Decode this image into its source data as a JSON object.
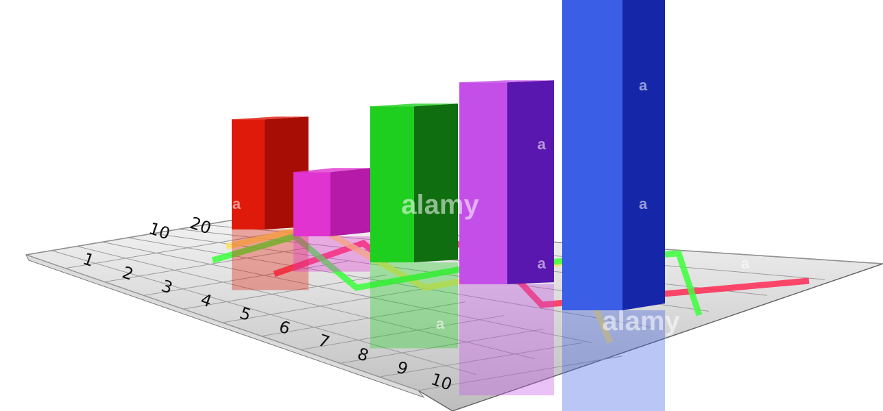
{
  "chart_data": {
    "type": "bar",
    "style": "3d-perspective",
    "values": [
      12,
      7,
      17,
      22,
      34
    ],
    "colors": [
      "#e01a0a",
      "#e033d0",
      "#1fcf1f",
      "#c44fe8",
      "#3a5fe6"
    ],
    "side_colors": [
      "#a80d05",
      "#b51aa8",
      "#0f6e0f",
      "#5a17b0",
      "#1526a8"
    ],
    "front_ticks": [
      "1",
      "2",
      "3",
      "4",
      "5",
      "6",
      "7",
      "8",
      "9",
      "10"
    ],
    "side_ticks": [
      "10",
      "20"
    ],
    "grid": true,
    "floor_lines": [
      {
        "color": "#ff2a55"
      },
      {
        "color": "#ffe066"
      },
      {
        "color": "#3cff3c"
      }
    ]
  },
  "watermark": {
    "brand": "alamy",
    "mark": "a"
  }
}
